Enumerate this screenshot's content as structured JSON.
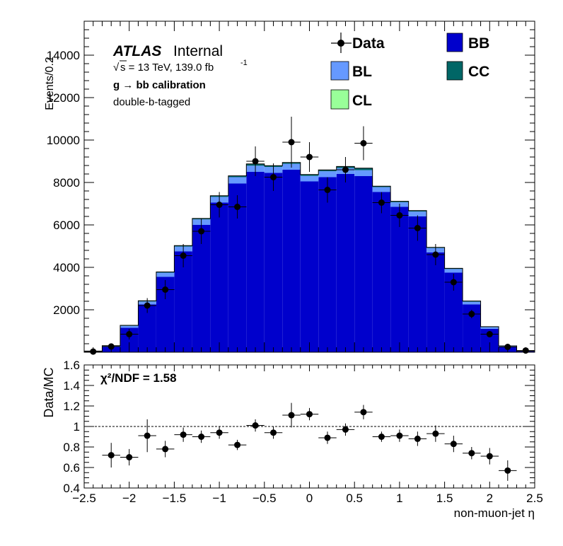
{
  "chart_data": [
    {
      "type": "bar",
      "stacked": true,
      "ylabel": "Events/0.2",
      "ylim": [
        0,
        15600
      ],
      "xlim": [
        -2.5,
        2.5
      ],
      "y_ticks": [
        2000,
        4000,
        6000,
        8000,
        10000,
        12000,
        14000
      ],
      "y_tick_labels": [
        "2000",
        "4000",
        "6000",
        "8000",
        "10000",
        "12000",
        "14000"
      ],
      "atlas_label": "ATLAS",
      "atlas_status": "Internal",
      "energy_sqrt": "√",
      "energy_text": "s = 13 TeV, 139.0 fb",
      "energy_exponent": "-1",
      "selection_title": "g → bb calibration",
      "selection_sub": "double-b-tagged",
      "legend": {
        "placement": "top-right",
        "entries": [
          {
            "label": "Data",
            "color": "#000000",
            "kind": "marker"
          },
          {
            "label": "BB",
            "color": "#0000cc",
            "kind": "fill"
          },
          {
            "label": "BL",
            "color": "#6699ff",
            "kind": "fill"
          },
          {
            "label": "CC",
            "color": "#006666",
            "kind": "fill"
          },
          {
            "label": "CL",
            "color": "#99ff99",
            "kind": "fill"
          }
        ]
      },
      "bin_edges": [
        -2.5,
        -2.3,
        -2.1,
        -1.9,
        -1.7,
        -1.5,
        -1.3,
        -1.1,
        -0.9,
        -0.7,
        -0.5,
        -0.3,
        -0.1,
        0.1,
        0.3,
        0.5,
        0.7,
        0.9,
        1.1,
        1.3,
        1.5,
        1.7,
        1.9,
        2.1,
        2.3,
        2.5
      ],
      "series": [
        {
          "name": "BB",
          "color": "#0000cc",
          "values": [
            40,
            250,
            1150,
            2250,
            3550,
            4750,
            6000,
            7050,
            7950,
            8500,
            8450,
            8600,
            8050,
            8250,
            8400,
            8300,
            7550,
            6850,
            6400,
            4700,
            3750,
            2250,
            1100,
            250,
            40
          ]
        },
        {
          "name": "BL",
          "color": "#6699ff",
          "values": [
            10,
            45,
            90,
            140,
            200,
            230,
            260,
            270,
            300,
            290,
            280,
            280,
            260,
            280,
            280,
            280,
            230,
            220,
            230,
            210,
            170,
            130,
            80,
            40,
            10
          ]
        },
        {
          "name": "CC",
          "color": "#006666",
          "values": [
            3,
            10,
            25,
            30,
            30,
            40,
            40,
            50,
            60,
            80,
            60,
            60,
            60,
            60,
            70,
            90,
            40,
            40,
            40,
            30,
            30,
            30,
            20,
            10,
            3
          ]
        },
        {
          "name": "CL",
          "color": "#99ff99",
          "values": [
            1,
            2,
            3,
            3,
            3,
            3,
            3,
            3,
            3,
            3,
            3,
            3,
            3,
            3,
            3,
            3,
            3,
            3,
            3,
            3,
            3,
            3,
            3,
            2,
            1
          ]
        }
      ],
      "data_points": {
        "name": "Data",
        "x": [
          -2.4,
          -2.2,
          -2.0,
          -1.8,
          -1.6,
          -1.4,
          -1.2,
          -1.0,
          -0.8,
          -0.6,
          -0.4,
          -0.2,
          0.0,
          0.2,
          0.4,
          0.6,
          0.8,
          1.0,
          1.2,
          1.4,
          1.6,
          1.8,
          2.0,
          2.2,
          2.4
        ],
        "y": [
          30,
          270,
          850,
          2200,
          2950,
          4550,
          5700,
          6950,
          6850,
          9000,
          8250,
          9900,
          9200,
          7650,
          8600,
          9850,
          7050,
          6450,
          5850,
          4600,
          3300,
          1800,
          850,
          250,
          80
        ],
        "yerr": [
          60,
          120,
          250,
          350,
          450,
          550,
          600,
          600,
          550,
          700,
          650,
          1200,
          700,
          600,
          600,
          800,
          500,
          550,
          600,
          500,
          400,
          200,
          150,
          100,
          60
        ]
      }
    },
    {
      "type": "scatter",
      "xlabel": "non-muon-jet η",
      "ylabel": "Data/MC",
      "ylim": [
        0.4,
        1.6
      ],
      "xlim": [
        -2.5,
        2.5
      ],
      "reference_line": 1,
      "y_ticks": [
        0.4,
        0.6,
        0.8,
        1.0,
        1.2,
        1.4,
        1.6
      ],
      "y_tick_labels": [
        "0.4",
        "0.6",
        "0.8",
        "1",
        "1.2",
        "1.4",
        "1.6"
      ],
      "x_ticks": [
        -2.5,
        -2,
        -1.5,
        -1,
        -0.5,
        0,
        0.5,
        1,
        1.5,
        2,
        2.5
      ],
      "x_tick_labels": [
        "−2.5",
        "−2",
        "−1.5",
        "−1",
        "−0.5",
        "0",
        "0.5",
        "1",
        "1.5",
        "2",
        "2.5"
      ],
      "annotation": "χ²/NDF = 1.58",
      "points": {
        "x": [
          -2.2,
          -2.0,
          -1.8,
          -1.6,
          -1.4,
          -1.2,
          -1.0,
          -0.8,
          -0.6,
          -0.4,
          -0.2,
          0.0,
          0.2,
          0.4,
          0.6,
          0.8,
          1.0,
          1.2,
          1.4,
          1.6,
          1.8,
          2.0,
          2.2
        ],
        "y": [
          0.72,
          0.7,
          0.91,
          0.78,
          0.92,
          0.9,
          0.94,
          0.82,
          1.01,
          0.94,
          1.11,
          1.12,
          0.89,
          0.97,
          1.14,
          0.9,
          0.91,
          0.88,
          0.93,
          0.83,
          0.74,
          0.71,
          0.57
        ],
        "yerr": [
          0.12,
          0.08,
          0.16,
          0.08,
          0.07,
          0.06,
          0.06,
          0.05,
          0.06,
          0.06,
          0.12,
          0.06,
          0.06,
          0.06,
          0.07,
          0.05,
          0.06,
          0.07,
          0.08,
          0.08,
          0.06,
          0.08,
          0.1
        ]
      }
    }
  ]
}
